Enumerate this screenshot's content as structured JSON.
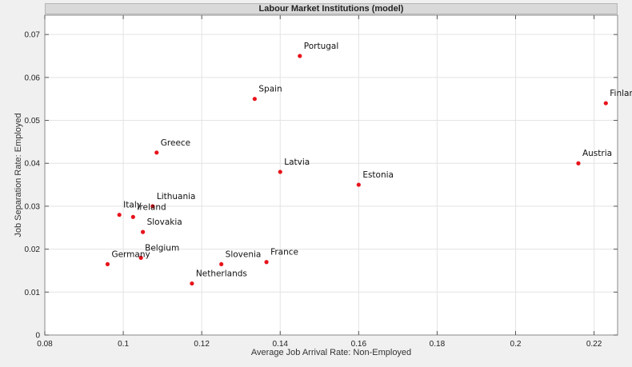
{
  "chart_data": {
    "type": "scatter",
    "title": "Labour Market Institutions (model)",
    "xlabel": "Average Job Arrival Rate: Non-Employed",
    "ylabel": "Job Separation Rate: Employed",
    "xlim": [
      0.08,
      0.226
    ],
    "ylim": [
      0,
      0.0745
    ],
    "xticks": [
      0.08,
      0.1,
      0.12,
      0.14,
      0.16,
      0.18,
      0.2,
      0.22
    ],
    "xtick_labels": [
      "0.08",
      "0.1",
      "0.12",
      "0.14",
      "0.16",
      "0.18",
      "0.2",
      "0.22"
    ],
    "yticks": [
      0,
      0.01,
      0.02,
      0.03,
      0.04,
      0.05,
      0.06,
      0.07
    ],
    "ytick_labels": [
      "0",
      "0.01",
      "0.02",
      "0.03",
      "0.04",
      "0.05",
      "0.06",
      "0.07"
    ],
    "grid": true,
    "marker_color": "#e8131b",
    "points": [
      {
        "label": "Portugal",
        "x": 0.145,
        "y": 0.065
      },
      {
        "label": "Spain",
        "x": 0.1335,
        "y": 0.055
      },
      {
        "label": "Finland",
        "x": 0.223,
        "y": 0.054
      },
      {
        "label": "Greece",
        "x": 0.1085,
        "y": 0.0425
      },
      {
        "label": "Austria",
        "x": 0.216,
        "y": 0.04
      },
      {
        "label": "Latvia",
        "x": 0.14,
        "y": 0.038
      },
      {
        "label": "Estonia",
        "x": 0.16,
        "y": 0.035
      },
      {
        "label": "Lithuania",
        "x": 0.1075,
        "y": 0.03
      },
      {
        "label": "Italy",
        "x": 0.099,
        "y": 0.028
      },
      {
        "label": "Ireland",
        "x": 0.1025,
        "y": 0.0275
      },
      {
        "label": "Slovakia",
        "x": 0.105,
        "y": 0.024
      },
      {
        "label": "Belgium",
        "x": 0.1045,
        "y": 0.018
      },
      {
        "label": "Germany",
        "x": 0.096,
        "y": 0.0165
      },
      {
        "label": "Slovenia",
        "x": 0.125,
        "y": 0.0165
      },
      {
        "label": "France",
        "x": 0.1365,
        "y": 0.017
      },
      {
        "label": "Netherlands",
        "x": 0.1175,
        "y": 0.012
      }
    ]
  }
}
